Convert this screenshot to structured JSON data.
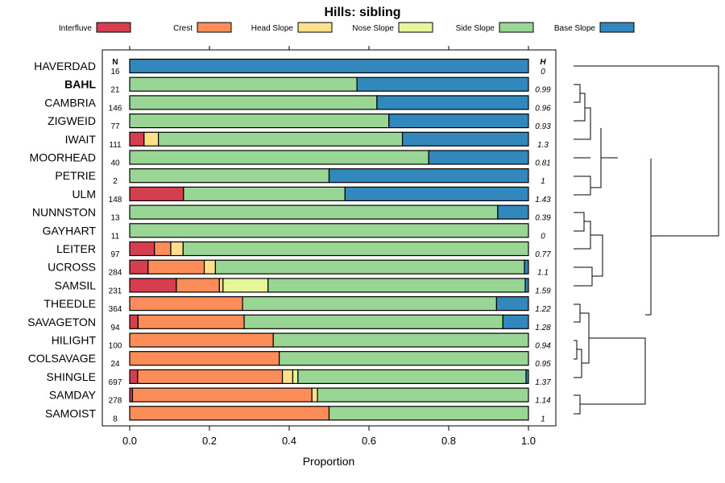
{
  "chart_data": {
    "type": "stacked-bar-horizontal",
    "title": "Hills: sibling",
    "xlabel": "Proportion",
    "xlim": [
      0,
      1
    ],
    "xticks": [
      "0.0",
      "0.2",
      "0.4",
      "0.6",
      "0.8",
      "1.0"
    ],
    "n_header": "N",
    "h_header": "H",
    "legend_position": "top",
    "legend": [
      {
        "name": "Interfluve",
        "color": "#d53e4f"
      },
      {
        "name": "Crest",
        "color": "#fc8d59"
      },
      {
        "name": "Head Slope",
        "color": "#fee08b"
      },
      {
        "name": "Nose Slope",
        "color": "#e6f598"
      },
      {
        "name": "Side Slope",
        "color": "#99d594"
      },
      {
        "name": "Base Slope",
        "color": "#3288bd"
      }
    ],
    "rows": [
      {
        "name": "HAVERDAD",
        "bold": false,
        "n": "16",
        "h": "0",
        "values": [
          0,
          0,
          0,
          0,
          0,
          1.0
        ]
      },
      {
        "name": "BAHL",
        "bold": true,
        "n": "21",
        "h": "0.99",
        "values": [
          0,
          0,
          0,
          0,
          0.57,
          0.43
        ]
      },
      {
        "name": "CAMBRIA",
        "bold": false,
        "n": "146",
        "h": "0.96",
        "values": [
          0,
          0,
          0,
          0,
          0.62,
          0.38
        ]
      },
      {
        "name": "ZIGWEID",
        "bold": false,
        "n": "77",
        "h": "0.93",
        "values": [
          0,
          0,
          0,
          0,
          0.65,
          0.35
        ]
      },
      {
        "name": "IWAIT",
        "bold": false,
        "n": "111",
        "h": "1.3",
        "values": [
          0.036,
          0,
          0.036,
          0,
          0.612,
          0.316
        ]
      },
      {
        "name": "MOORHEAD",
        "bold": false,
        "n": "40",
        "h": "0.81",
        "values": [
          0,
          0,
          0,
          0,
          0.75,
          0.25
        ]
      },
      {
        "name": "PETRIE",
        "bold": false,
        "n": "2",
        "h": "1",
        "values": [
          0,
          0,
          0,
          0,
          0.5,
          0.5
        ]
      },
      {
        "name": "ULM",
        "bold": false,
        "n": "148",
        "h": "1.43",
        "values": [
          0.135,
          0,
          0,
          0,
          0.405,
          0.46
        ]
      },
      {
        "name": "NUNNSTON",
        "bold": false,
        "n": "13",
        "h": "0.39",
        "values": [
          0,
          0,
          0,
          0,
          0.923,
          0.077
        ]
      },
      {
        "name": "GAYHART",
        "bold": false,
        "n": "11",
        "h": "0",
        "values": [
          0,
          0,
          0,
          0,
          1.0,
          0
        ]
      },
      {
        "name": "LEITER",
        "bold": false,
        "n": "97",
        "h": "0.77",
        "values": [
          0.062,
          0.041,
          0.031,
          0,
          0.866,
          0
        ]
      },
      {
        "name": "UCROSS",
        "bold": false,
        "n": "284",
        "h": "1.1",
        "values": [
          0.046,
          0.141,
          0.028,
          0,
          0.775,
          0.01
        ]
      },
      {
        "name": "SAMSIL",
        "bold": false,
        "n": "231",
        "h": "1.59",
        "values": [
          0.117,
          0.108,
          0.009,
          0.113,
          0.645,
          0.008
        ]
      },
      {
        "name": "THEEDLE",
        "bold": false,
        "n": "364",
        "h": "1.22",
        "values": [
          0,
          0.283,
          0,
          0,
          0.637,
          0.08
        ]
      },
      {
        "name": "SAVAGETON",
        "bold": false,
        "n": "94",
        "h": "1.28",
        "values": [
          0.021,
          0.266,
          0,
          0,
          0.649,
          0.064
        ]
      },
      {
        "name": "HILIGHT",
        "bold": false,
        "n": "100",
        "h": "0.94",
        "values": [
          0,
          0.36,
          0,
          0,
          0.64,
          0
        ]
      },
      {
        "name": "COLSAVAGE",
        "bold": false,
        "n": "24",
        "h": "0.95",
        "values": [
          0,
          0.375,
          0,
          0,
          0.625,
          0
        ]
      },
      {
        "name": "SHINGLE",
        "bold": false,
        "n": "697",
        "h": "1.37",
        "values": [
          0.02,
          0.363,
          0.026,
          0.013,
          0.572,
          0.006
        ]
      },
      {
        "name": "SAMDAY",
        "bold": false,
        "n": "278",
        "h": "1.14",
        "values": [
          0.007,
          0.45,
          0.014,
          0,
          0.529,
          0
        ]
      },
      {
        "name": "SAMOIST",
        "bold": false,
        "n": "8",
        "h": "1",
        "values": [
          0,
          0.5,
          0,
          0,
          0.5,
          0
        ]
      }
    ],
    "dendrogram": "hierarchical clustering of series (right side)"
  }
}
